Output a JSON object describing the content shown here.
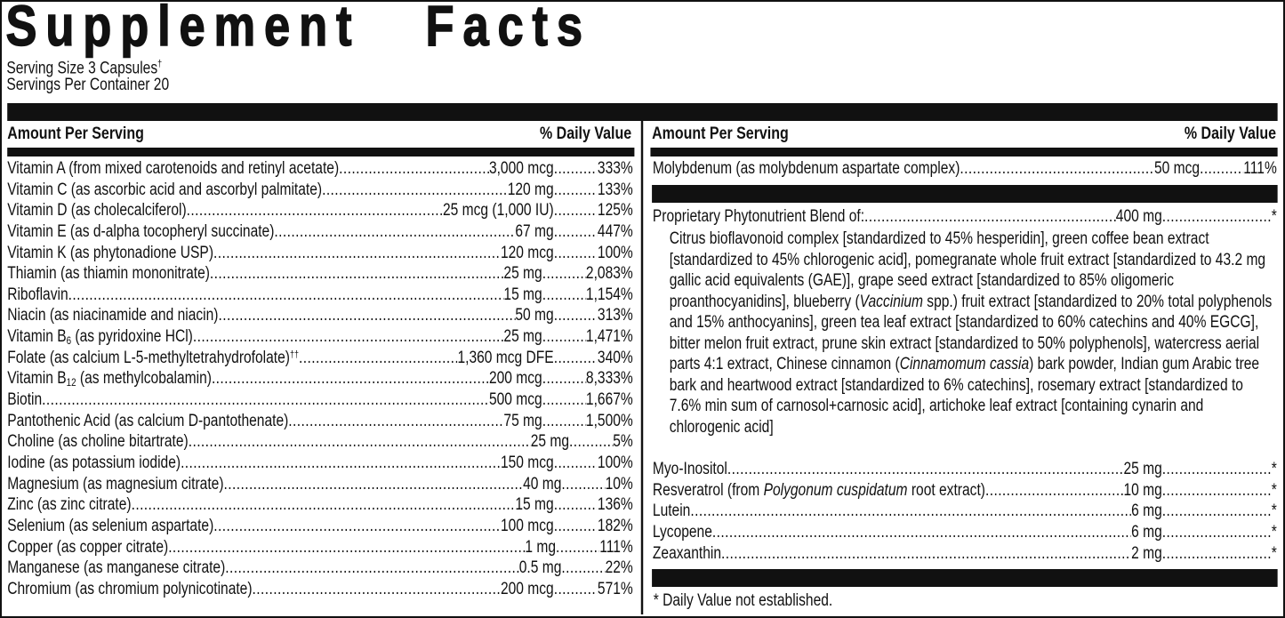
{
  "title": "Supplement   Facts",
  "serving_size": "Serving Size 3 Capsules",
  "serving_size_mark": "†",
  "servings_per_container": "Servings Per Container 20",
  "header": {
    "amount": "Amount Per Serving",
    "dv": "% Daily Value"
  },
  "left_rows": [
    {
      "parts": [
        {
          "t": "Vitamin A (from mixed carotenoids and retinyl acetate)"
        }
      ],
      "amount": "3,000 mcg",
      "dv": "333%"
    },
    {
      "parts": [
        {
          "t": "Vitamin C (as ascorbic acid and ascorbyl palmitate)"
        }
      ],
      "amount": "120 mg",
      "dv": "133%"
    },
    {
      "parts": [
        {
          "t": "Vitamin D (as cholecalciferol)"
        }
      ],
      "amount": "25 mcg (1,000 IU)",
      "dv": "125%"
    },
    {
      "parts": [
        {
          "t": "Vitamin E (as d-alpha tocopheryl succinate)"
        }
      ],
      "amount": "67 mg",
      "dv": "447%"
    },
    {
      "parts": [
        {
          "t": "Vitamin K (as phytonadione USP)"
        }
      ],
      "amount": "120 mcg",
      "dv": "100%"
    },
    {
      "parts": [
        {
          "t": "Thiamin (as thiamin mononitrate)"
        }
      ],
      "amount": "25 mg",
      "dv": "2,083%"
    },
    {
      "parts": [
        {
          "t": "Riboflavin"
        }
      ],
      "amount": "15 mg",
      "dv": "1,154%"
    },
    {
      "parts": [
        {
          "t": "Niacin (as niacinamide and niacin)"
        }
      ],
      "amount": "50 mg",
      "dv": "313%"
    },
    {
      "parts": [
        {
          "t": "Vitamin B"
        },
        {
          "t": "6",
          "sub": true
        },
        {
          "t": " (as pyridoxine HCl)"
        }
      ],
      "amount": "25 mg",
      "dv": "1,471%"
    },
    {
      "parts": [
        {
          "t": "Folate (as calcium L-5-methyltetrahydrofolate)"
        },
        {
          "t": "††",
          "sup": true
        }
      ],
      "amount": "1,360 mcg DFE",
      "dv": "340%"
    },
    {
      "parts": [
        {
          "t": "Vitamin B"
        },
        {
          "t": "12",
          "sub": true
        },
        {
          "t": " (as methylcobalamin)"
        }
      ],
      "amount": "200 mcg",
      "dv": "8,333%"
    },
    {
      "parts": [
        {
          "t": "Biotin"
        }
      ],
      "amount": "500 mcg",
      "dv": "1,667%"
    },
    {
      "parts": [
        {
          "t": "Pantothenic Acid (as calcium D-pantothenate)"
        }
      ],
      "amount": "75 mg",
      "dv": "1,500%"
    },
    {
      "parts": [
        {
          "t": "Choline (as choline bitartrate)"
        }
      ],
      "amount": "25 mg",
      "dv": "5%"
    },
    {
      "parts": [
        {
          "t": "Iodine (as potassium iodide)"
        }
      ],
      "amount": "150 mcg",
      "dv": "100%"
    },
    {
      "parts": [
        {
          "t": "Magnesium (as magnesium citrate)"
        }
      ],
      "amount": "40 mg",
      "dv": "10%"
    },
    {
      "parts": [
        {
          "t": "Zinc (as zinc citrate)"
        }
      ],
      "amount": "15 mg",
      "dv": "136%"
    },
    {
      "parts": [
        {
          "t": "Selenium (as selenium aspartate)"
        }
      ],
      "amount": "100 mcg",
      "dv": "182%"
    },
    {
      "parts": [
        {
          "t": "Copper (as copper citrate)"
        }
      ],
      "amount": "1 mg",
      "dv": "111%"
    },
    {
      "parts": [
        {
          "t": "Manganese (as manganese citrate)"
        }
      ],
      "amount": "0.5 mg",
      "dv": "22%"
    },
    {
      "parts": [
        {
          "t": "Chromium (as chromium polynicotinate)"
        }
      ],
      "amount": "200 mcg",
      "dv": "571%"
    }
  ],
  "right_top_rows": [
    {
      "parts": [
        {
          "t": "Molybdenum (as molybdenum aspartate complex)"
        }
      ],
      "amount": "50 mcg",
      "dv": "111%"
    }
  ],
  "blend_row": {
    "parts": [
      {
        "t": "Proprietary Phytonutrient Blend of:"
      }
    ],
    "amount": "400 mg",
    "dv": "*"
  },
  "blend_description": [
    {
      "t": "Citrus bioflavonoid complex [standardized to 45% hesperidin], green coffee bean extract [standardized to 45% chlorogenic acid], pomegranate whole fruit extract [standardized to 43.2 mg gallic acid equivalents (GAE)], grape seed extract [standardized to 85% oligomeric proanthocyanidins], blueberry ("
    },
    {
      "t": "Vaccinium",
      "i": true
    },
    {
      "t": " spp.) fruit extract [standardized to 20% total polyphenols and 15% anthocyanins], green tea leaf extract [standardized to 60% catechins and 40% EGCG], bitter melon fruit extract, prune skin extract [standardized to 50% polyphenols], watercress aerial parts 4:1 extract, Chinese cinnamon ("
    },
    {
      "t": "Cinnamomum cassia",
      "i": true
    },
    {
      "t": ") bark powder, Indian gum Arabic tree bark and heartwood extract [standardized to 6% catechins], rosemary extract [standardized to 7.6% min sum of carnosol+carnosic acid], artichoke leaf extract [containing cynarin and chlorogenic acid]"
    }
  ],
  "right_bottom_rows": [
    {
      "parts": [
        {
          "t": "Myo-Inositol"
        }
      ],
      "amount": "25 mg",
      "dv": "*"
    },
    {
      "parts": [
        {
          "t": "Resveratrol (from "
        },
        {
          "t": "Polygonum cuspidatum",
          "i": true
        },
        {
          "t": " root extract)"
        }
      ],
      "amount": "10 mg",
      "dv": "*"
    },
    {
      "parts": [
        {
          "t": "Lutein"
        }
      ],
      "amount": "6 mg",
      "dv": "*"
    },
    {
      "parts": [
        {
          "t": "Lycopene"
        }
      ],
      "amount": "6 mg",
      "dv": "*"
    },
    {
      "parts": [
        {
          "t": "Zeaxanthin"
        }
      ],
      "amount": "2 mg",
      "dv": "*"
    }
  ],
  "footnote": "* Daily Value not established."
}
